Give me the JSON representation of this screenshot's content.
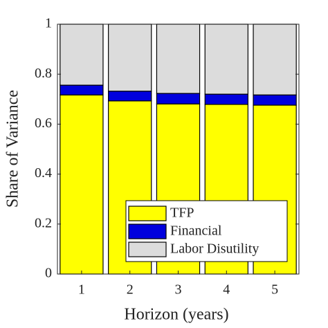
{
  "chart_data": {
    "type": "stacked_bar",
    "x_label": "Horizon (years)",
    "y_label": "Share of Variance",
    "categories": [
      "1",
      "2",
      "3",
      "4",
      "5"
    ],
    "series": [
      {
        "name": "TFP",
        "color": "#ffff00",
        "values": [
          0.717,
          0.693,
          0.681,
          0.679,
          0.676
        ]
      },
      {
        "name": "Financial",
        "color": "#0000dd",
        "values": [
          0.039,
          0.039,
          0.042,
          0.041,
          0.041
        ]
      },
      {
        "name": "Labor Disutility",
        "color": "#dcdcdc",
        "values": [
          0.244,
          0.268,
          0.277,
          0.28,
          0.283
        ]
      }
    ],
    "ylim": [
      0,
      1
    ],
    "yticks": [
      0,
      0.2,
      0.4,
      0.6,
      0.8,
      1
    ],
    "legend": "lower right"
  }
}
